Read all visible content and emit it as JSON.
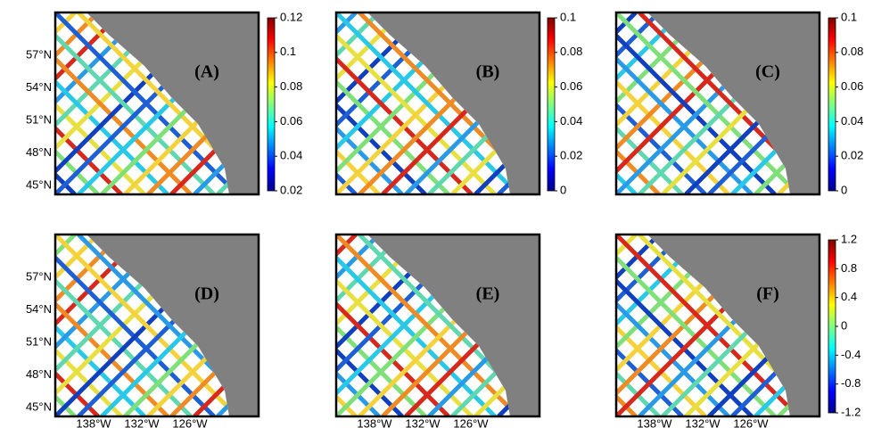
{
  "lat_labels": [
    "57°N",
    "54°N",
    "51°N",
    "48°N",
    "45°N"
  ],
  "lon_labels": [
    "138°W",
    "132°W",
    "126°W"
  ],
  "panels": [
    {
      "label": "(A)",
      "colorbar": {
        "lim": [
          0.02,
          0.12
        ],
        "ticks": [
          0.12,
          0.1,
          0.08,
          0.06,
          0.04,
          0.02
        ]
      }
    },
    {
      "label": "(B)",
      "colorbar": {
        "lim": [
          0,
          0.1
        ],
        "ticks": [
          0.1,
          0.08,
          0.06,
          0.04,
          0.02,
          0
        ]
      }
    },
    {
      "label": "(C)",
      "colorbar": {
        "lim": [
          0,
          0.1
        ],
        "ticks": [
          0.1,
          0.08,
          0.06,
          0.04,
          0.02,
          0
        ]
      }
    },
    {
      "label": "(D)"
    },
    {
      "label": "(E)"
    },
    {
      "label": "(F)",
      "colorbar": {
        "lim": [
          -1.2,
          1.2
        ],
        "ticks": [
          1.2,
          0.8,
          0.4,
          0,
          -0.4,
          -0.8,
          -1.2
        ]
      }
    }
  ]
}
